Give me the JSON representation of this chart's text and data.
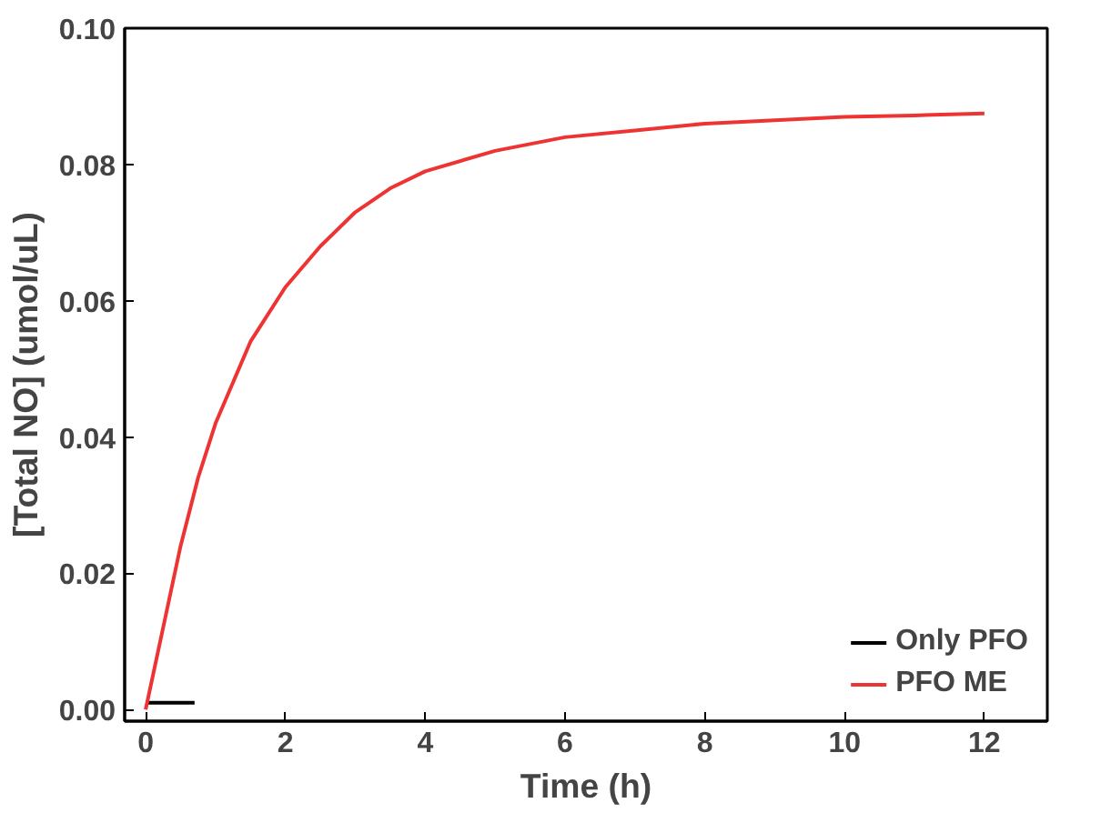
{
  "chart_data": {
    "type": "line",
    "xlabel": "Time (h)",
    "ylabel": "[Total NO] (umol/uL)",
    "xlim": [
      -0.3,
      12.9
    ],
    "ylim": [
      -0.0017,
      0.1
    ],
    "xticks": [
      0,
      2,
      4,
      6,
      8,
      10,
      12
    ],
    "yticks": [
      {
        "value": 0,
        "label": "0.00"
      },
      {
        "value": 0.02,
        "label": "0.02"
      },
      {
        "value": 0.04,
        "label": "0.04"
      },
      {
        "value": 0.06,
        "label": "0.06"
      },
      {
        "value": 0.08,
        "label": "0.08"
      },
      {
        "value": 0.1,
        "label": "0.10"
      }
    ],
    "series": [
      {
        "name": "Only PFO",
        "color": "#000000",
        "x": [
          0,
          0.7
        ],
        "values": [
          0.001,
          0.001
        ]
      },
      {
        "name": "PFO ME",
        "color": "#ee3333",
        "x": [
          0,
          0.25,
          0.5,
          0.75,
          1,
          1.5,
          2,
          2.5,
          3,
          3.5,
          4,
          5,
          6,
          7,
          8,
          9,
          10,
          11,
          12
        ],
        "values": [
          0,
          0.012,
          0.024,
          0.034,
          0.042,
          0.054,
          0.062,
          0.068,
          0.073,
          0.0765,
          0.079,
          0.082,
          0.084,
          0.085,
          0.086,
          0.0865,
          0.087,
          0.0872,
          0.0875
        ]
      }
    ],
    "legend": "bottom right",
    "grid": false,
    "line_style": "solid"
  }
}
